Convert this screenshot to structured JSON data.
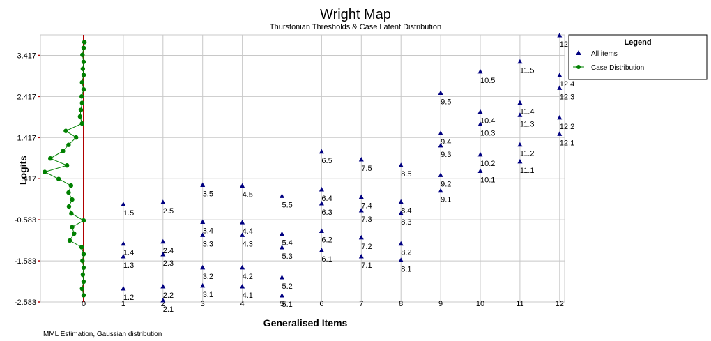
{
  "chart_data": {
    "type": "scatter",
    "title": "Wright Map",
    "subtitle": "Thurstonian Thresholds & Case Latent Distribution",
    "xlabel": "Generalised Items",
    "ylabel": "Logits",
    "footer": "MML Estimation, Gaussian distribution",
    "x_ticks": [
      "0",
      "1",
      "2",
      "3",
      "4",
      "5",
      "6",
      "7",
      "8",
      "9",
      "10",
      "11",
      "12"
    ],
    "y_ticks": [
      "3.417",
      "2.417",
      "1.417",
      ".417",
      "-0.583",
      "-1.583",
      "-2.583"
    ],
    "ylim": [
      -2.583,
      3.917
    ],
    "grid": true,
    "legend": {
      "title": "Legend",
      "position": "top-right",
      "entries": [
        "All items",
        "Case Distribution"
      ]
    },
    "colors": {
      "items": "#000080",
      "case": "#008000",
      "zero_line": "#b00000",
      "grid": "#c8c8c8"
    },
    "series": [
      {
        "name": "All items",
        "points": [
          {
            "x": 1,
            "y": -2.26,
            "label": "1.2"
          },
          {
            "x": 1,
            "y": -1.48,
            "label": "1.3"
          },
          {
            "x": 1,
            "y": -1.17,
            "label": "1.4"
          },
          {
            "x": 1,
            "y": -0.21,
            "label": "1.5"
          },
          {
            "x": 2,
            "y": -2.55,
            "label": "2.1"
          },
          {
            "x": 2,
            "y": -2.21,
            "label": "2.2"
          },
          {
            "x": 2,
            "y": -1.43,
            "label": "2.3"
          },
          {
            "x": 2,
            "y": -1.12,
            "label": "2.4"
          },
          {
            "x": 2,
            "y": -0.16,
            "label": "2.5"
          },
          {
            "x": 3,
            "y": -2.19,
            "label": "3.1"
          },
          {
            "x": 3,
            "y": -1.75,
            "label": "3.2"
          },
          {
            "x": 3,
            "y": -0.96,
            "label": "3.3"
          },
          {
            "x": 3,
            "y": -0.64,
            "label": "3.4"
          },
          {
            "x": 3,
            "y": 0.26,
            "label": "3.5"
          },
          {
            "x": 4,
            "y": -2.21,
            "label": "4.1"
          },
          {
            "x": 4,
            "y": -1.75,
            "label": "4.2"
          },
          {
            "x": 4,
            "y": -0.96,
            "label": "4.3"
          },
          {
            "x": 4,
            "y": -0.65,
            "label": "4.4"
          },
          {
            "x": 4,
            "y": 0.24,
            "label": "4.5"
          },
          {
            "x": 5,
            "y": -2.43,
            "label": "5.1"
          },
          {
            "x": 5,
            "y": -1.99,
            "label": "5.2"
          },
          {
            "x": 5,
            "y": -1.26,
            "label": "5.3"
          },
          {
            "x": 5,
            "y": -0.93,
            "label": "5.4"
          },
          {
            "x": 5,
            "y": -0.01,
            "label": "5.5"
          },
          {
            "x": 6,
            "y": -1.33,
            "label": "6.1"
          },
          {
            "x": 6,
            "y": -0.86,
            "label": "6.2"
          },
          {
            "x": 6,
            "y": -0.19,
            "label": "6.3"
          },
          {
            "x": 6,
            "y": 0.15,
            "label": "6.4"
          },
          {
            "x": 6,
            "y": 1.07,
            "label": "6.5"
          },
          {
            "x": 7,
            "y": -1.48,
            "label": "7.1"
          },
          {
            "x": 7,
            "y": -1.02,
            "label": "7.2"
          },
          {
            "x": 7,
            "y": -0.36,
            "label": "7.3"
          },
          {
            "x": 7,
            "y": -0.03,
            "label": "7.4"
          },
          {
            "x": 7,
            "y": 0.88,
            "label": "7.5"
          },
          {
            "x": 8,
            "y": -1.57,
            "label": "8.1"
          },
          {
            "x": 8,
            "y": -1.17,
            "label": "8.2"
          },
          {
            "x": 8,
            "y": -0.43,
            "label": "8.3"
          },
          {
            "x": 8,
            "y": -0.15,
            "label": "8.4"
          },
          {
            "x": 8,
            "y": 0.74,
            "label": "8.5"
          },
          {
            "x": 9,
            "y": 0.12,
            "label": "9.1"
          },
          {
            "x": 9,
            "y": 0.5,
            "label": "9.2"
          },
          {
            "x": 9,
            "y": 1.22,
            "label": "9.3"
          },
          {
            "x": 9,
            "y": 1.52,
            "label": "9.4"
          },
          {
            "x": 9,
            "y": 2.5,
            "label": "9.5"
          },
          {
            "x": 10,
            "y": 0.6,
            "label": "10.1"
          },
          {
            "x": 10,
            "y": 1.0,
            "label": "10.2"
          },
          {
            "x": 10,
            "y": 1.74,
            "label": "10.3"
          },
          {
            "x": 10,
            "y": 2.04,
            "label": "10.4"
          },
          {
            "x": 10,
            "y": 3.02,
            "label": "10.5"
          },
          {
            "x": 11,
            "y": 0.83,
            "label": "11.1"
          },
          {
            "x": 11,
            "y": 1.24,
            "label": "11.2"
          },
          {
            "x": 11,
            "y": 1.96,
            "label": "11.3"
          },
          {
            "x": 11,
            "y": 2.26,
            "label": "11.4"
          },
          {
            "x": 11,
            "y": 3.26,
            "label": "11.5"
          },
          {
            "x": 12,
            "y": 1.5,
            "label": "12.1"
          },
          {
            "x": 12,
            "y": 1.9,
            "label": "12.2"
          },
          {
            "x": 12,
            "y": 2.62,
            "label": "12.3"
          },
          {
            "x": 12,
            "y": 2.93,
            "label": "12.4"
          },
          {
            "x": 12,
            "y": 3.9,
            "label": "12.5"
          }
        ]
      },
      {
        "name": "Case Distribution",
        "points": [
          {
            "x": 0.02,
            "y": 3.74
          },
          {
            "x": 0.0,
            "y": 3.6
          },
          {
            "x": -0.03,
            "y": 3.43
          },
          {
            "x": 0.0,
            "y": 3.26
          },
          {
            "x": -0.02,
            "y": 3.09
          },
          {
            "x": 0.0,
            "y": 2.94
          },
          {
            "x": -0.04,
            "y": 2.76
          },
          {
            "x": 0.0,
            "y": 2.59
          },
          {
            "x": -0.05,
            "y": 2.42
          },
          {
            "x": -0.04,
            "y": 2.26
          },
          {
            "x": -0.07,
            "y": 2.09
          },
          {
            "x": -0.09,
            "y": 1.93
          },
          {
            "x": -0.04,
            "y": 1.76
          },
          {
            "x": -0.45,
            "y": 1.58
          },
          {
            "x": -0.19,
            "y": 1.42
          },
          {
            "x": -0.38,
            "y": 1.24
          },
          {
            "x": -0.52,
            "y": 1.09
          },
          {
            "x": -0.84,
            "y": 0.91
          },
          {
            "x": -0.42,
            "y": 0.74
          },
          {
            "x": -0.98,
            "y": 0.58
          },
          {
            "x": -0.63,
            "y": 0.41
          },
          {
            "x": -0.32,
            "y": 0.25
          },
          {
            "x": -0.38,
            "y": 0.08
          },
          {
            "x": -0.29,
            "y": -0.09
          },
          {
            "x": -0.37,
            "y": -0.26
          },
          {
            "x": -0.31,
            "y": -0.43
          },
          {
            "x": 0.0,
            "y": -0.6
          },
          {
            "x": -0.29,
            "y": -0.76
          },
          {
            "x": -0.24,
            "y": -0.92
          },
          {
            "x": -0.35,
            "y": -1.09
          },
          {
            "x": -0.05,
            "y": -1.25
          },
          {
            "x": 0.0,
            "y": -1.42
          },
          {
            "x": -0.03,
            "y": -1.58
          },
          {
            "x": 0.0,
            "y": -1.75
          },
          {
            "x": -0.02,
            "y": -1.92
          },
          {
            "x": 0.0,
            "y": -2.09
          },
          {
            "x": -0.04,
            "y": -2.26
          },
          {
            "x": 0.0,
            "y": -2.42
          }
        ]
      }
    ]
  }
}
